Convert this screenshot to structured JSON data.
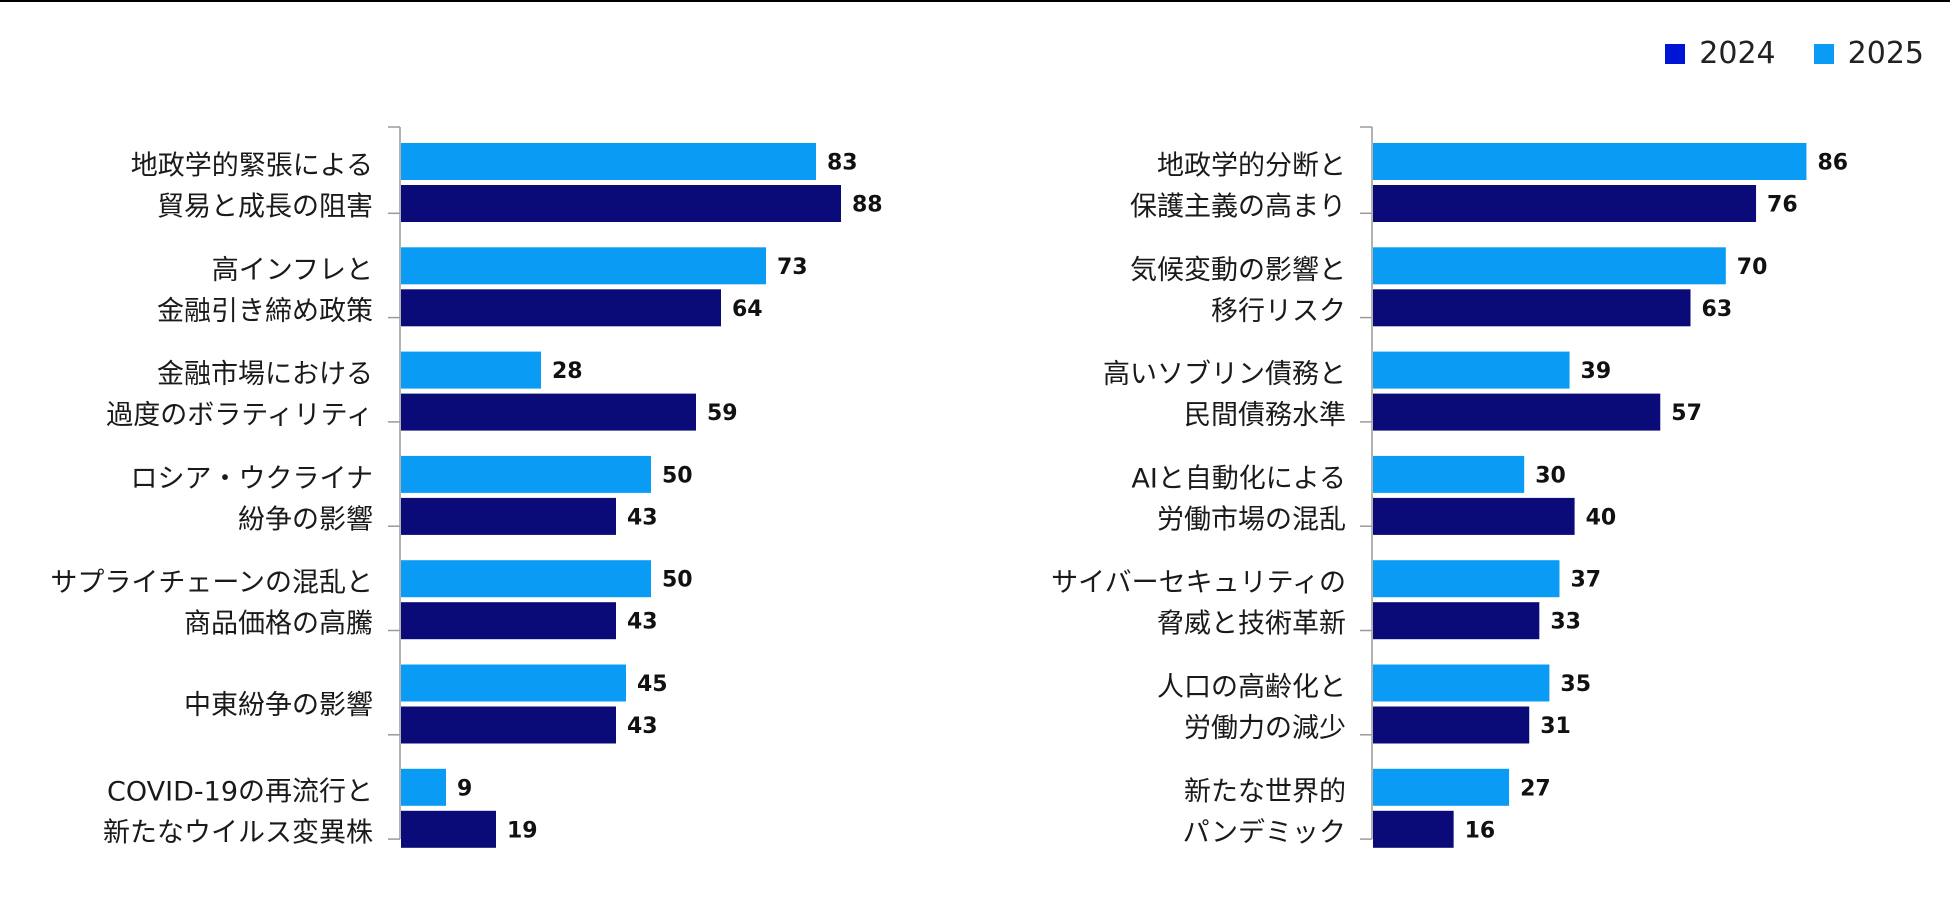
{
  "legend": {
    "items": [
      {
        "label": "2024",
        "color": "#0014d6"
      },
      {
        "label": "2025",
        "color": "#0a9cf5"
      }
    ]
  },
  "colors": {
    "series_2024": "#0a0a78",
    "series_2025": "#0a9cf5",
    "axis": "#9a9a9a"
  },
  "chart_data": [
    {
      "type": "bar",
      "orientation": "horizontal",
      "title": "",
      "xlabel": "",
      "ylabel": "",
      "xlim": [
        0,
        100
      ],
      "categories": [
        [
          "地政学的緊張による",
          "貿易と成長の阻害"
        ],
        [
          "高インフレと",
          "金融引き締め政策"
        ],
        [
          "金融市場における",
          "過度のボラティリティ"
        ],
        [
          "ロシア・ウクライナ",
          "紛争の影響"
        ],
        [
          "サプライチェーンの混乱と",
          "商品価格の高騰"
        ],
        [
          "中東紛争の影響"
        ],
        [
          "COVID-19の再流行と",
          "新たなウイルス変異株"
        ]
      ],
      "series": [
        {
          "name": "2025",
          "values": [
            83,
            73,
            28,
            50,
            50,
            45,
            9
          ]
        },
        {
          "name": "2024",
          "values": [
            88,
            64,
            59,
            43,
            43,
            43,
            19
          ]
        }
      ]
    },
    {
      "type": "bar",
      "orientation": "horizontal",
      "title": "",
      "xlabel": "",
      "ylabel": "",
      "xlim": [
        0,
        100
      ],
      "categories": [
        [
          "地政学的分断と",
          "保護主義の高まり"
        ],
        [
          "気候変動の影響と",
          "移行リスク"
        ],
        [
          "高いソブリン債務と",
          "民間債務水準"
        ],
        [
          "AIと自動化による",
          "労働市場の混乱"
        ],
        [
          "サイバーセキュリティの",
          "脅威と技術革新"
        ],
        [
          "人口の高齢化と",
          "労働力の減少"
        ],
        [
          "新たな世界的",
          "パンデミック"
        ]
      ],
      "series": [
        {
          "name": "2025",
          "values": [
            86,
            70,
            39,
            30,
            37,
            35,
            27
          ]
        },
        {
          "name": "2024",
          "values": [
            76,
            63,
            57,
            40,
            33,
            31,
            16
          ]
        }
      ]
    }
  ]
}
